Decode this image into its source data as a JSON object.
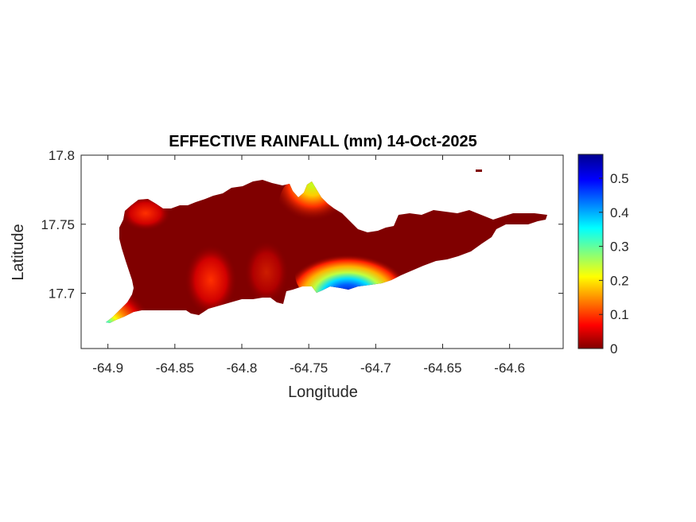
{
  "title": "EFFECTIVE RAINFALL (mm) 14-Oct-2025",
  "xlabel": "Longitude",
  "ylabel": "Latitude",
  "map": {
    "type": "filled-contour map",
    "xlim": [
      -64.92,
      -64.56
    ],
    "ylim": [
      17.66,
      17.8
    ],
    "x_ticks": [
      "-64.9",
      "-64.85",
      "-64.8",
      "-64.75",
      "-64.7",
      "-64.65",
      "-64.6"
    ],
    "y_ticks": [
      "17.8",
      "17.75",
      "17.7"
    ],
    "colormap": "jet",
    "colorbar": {
      "range": [
        0,
        0.57
      ],
      "ticks": [
        "0.5",
        "0.4",
        "0.3",
        "0.2",
        "0.1",
        "0"
      ]
    },
    "colors": {
      "background_value": "#800000",
      "peak_value": "#00008f"
    }
  }
}
